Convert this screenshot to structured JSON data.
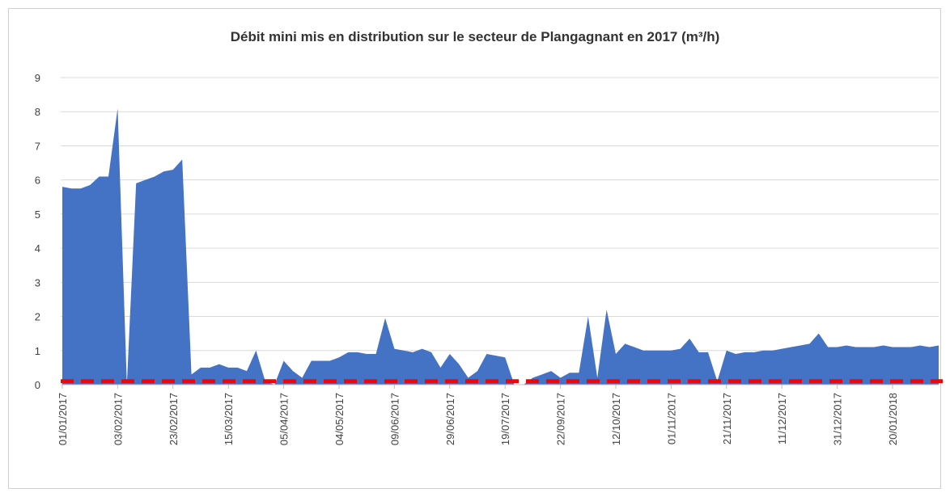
{
  "chart_data": {
    "type": "area",
    "title": "Débit mini mis en distribution sur le secteur de Plangagnant en 2017 (m³/h)",
    "categories": [
      "01/01/2017",
      null,
      null,
      null,
      null,
      null,
      "03/02/2017",
      null,
      null,
      null,
      null,
      null,
      "23/02/2017",
      null,
      null,
      null,
      null,
      null,
      "15/03/2017",
      null,
      null,
      null,
      null,
      null,
      "05/04/2017",
      null,
      null,
      null,
      null,
      null,
      "04/05/2017",
      null,
      null,
      null,
      null,
      null,
      "09/06/2017",
      null,
      null,
      null,
      null,
      null,
      "29/06/2017",
      null,
      null,
      null,
      null,
      null,
      "19/07/2017",
      null,
      null,
      null,
      null,
      null,
      "22/09/2017",
      null,
      null,
      null,
      null,
      null,
      "12/10/2017",
      null,
      null,
      null,
      null,
      null,
      "01/11/2017",
      null,
      null,
      null,
      null,
      null,
      "21/11/2017",
      null,
      null,
      null,
      null,
      null,
      "11/12/2017",
      null,
      null,
      null,
      null,
      null,
      "31/12/2017",
      null,
      null,
      null,
      null,
      null,
      "20/01/2018",
      null,
      null,
      null,
      null,
      null
    ],
    "series": [
      {
        "color": "#4472c4",
        "values": [
          5.8,
          5.75,
          5.75,
          5.85,
          6.1,
          6.1,
          8.1,
          0,
          5.9,
          6.0,
          6.1,
          6.25,
          6.3,
          6.6,
          0.3,
          0.5,
          0.5,
          0.6,
          0.5,
          0.5,
          0.4,
          1.0,
          0.1,
          0,
          0.7,
          0.4,
          0.2,
          0.7,
          0.7,
          0.7,
          0.8,
          0.95,
          0.95,
          0.9,
          0.9,
          1.95,
          1.05,
          1.0,
          0.95,
          1.05,
          0.95,
          0.5,
          0.9,
          0.6,
          0.2,
          0.4,
          0.9,
          0.85,
          0.8,
          0,
          0,
          0.2,
          0.3,
          0.4,
          0.2,
          0.35,
          0.35,
          2.0,
          0.2,
          2.2,
          0.9,
          1.2,
          1.1,
          1.0,
          1.0,
          1.0,
          1.0,
          1.05,
          1.35,
          0.95,
          0.95,
          0.1,
          1.0,
          0.9,
          0.95,
          0.95,
          1.0,
          1.0,
          1.05,
          1.1,
          1.15,
          1.2,
          1.5,
          1.1,
          1.1,
          1.15,
          1.1,
          1.1,
          1.1,
          1.15,
          1.1,
          1.1,
          1.1,
          1.15,
          1.1,
          1.15
        ]
      }
    ],
    "reference_line": {
      "value": 0.1,
      "color": "#ff0000"
    },
    "ylim": [
      0,
      9
    ],
    "yticks": [
      0,
      1,
      2,
      3,
      4,
      5,
      6,
      7,
      8,
      9
    ],
    "grid": true
  }
}
